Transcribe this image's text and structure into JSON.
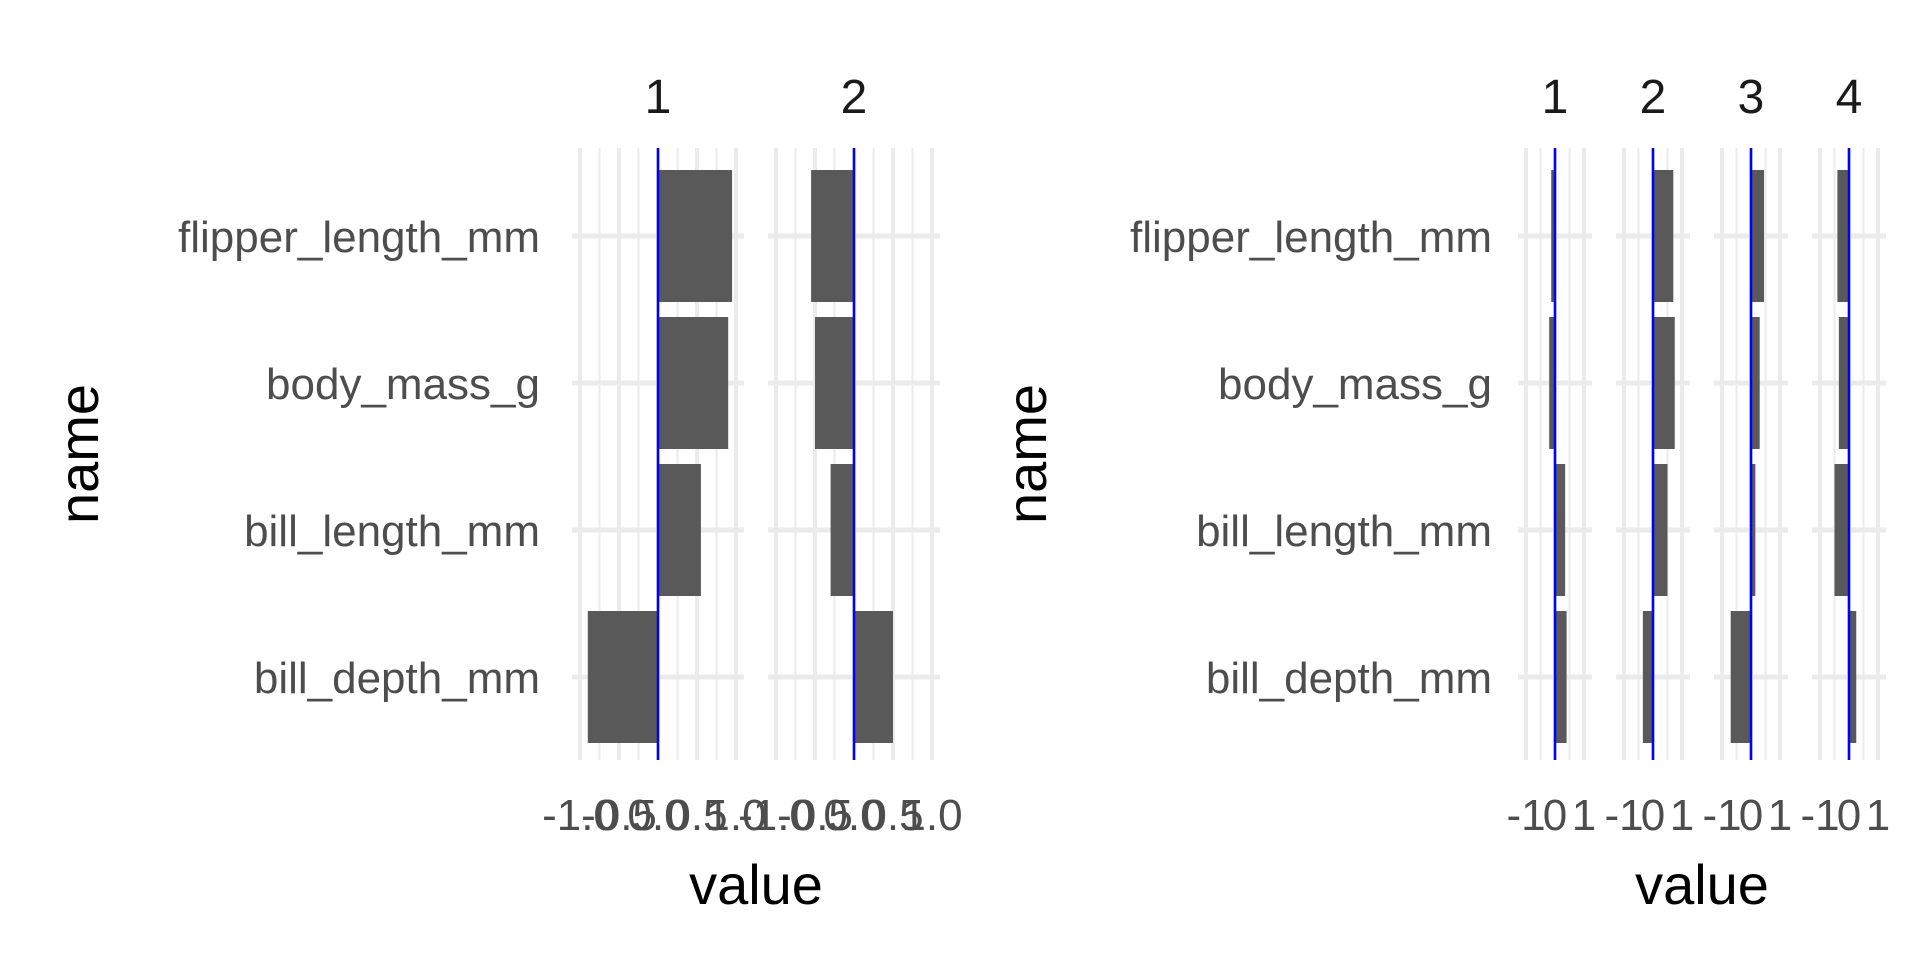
{
  "colors": {
    "bar": "#595959",
    "grid": "#ebebeb",
    "zero_line": "#0000ff",
    "text": "#4d4d4d"
  },
  "chart_data": [
    {
      "type": "bar",
      "orientation": "horizontal",
      "xlabel": "value",
      "ylabel": "name",
      "categories": [
        "flipper_length_mm",
        "body_mass_g",
        "bill_length_mm",
        "bill_depth_mm"
      ],
      "panels": [
        {
          "name": "1",
          "values": [
            0.95,
            0.9,
            0.55,
            -0.9
          ]
        },
        {
          "name": "2",
          "values": [
            -0.55,
            -0.5,
            -0.3,
            0.5
          ]
        }
      ],
      "xlim": [
        -1.0,
        1.0
      ],
      "xticks": [
        -1.0,
        -0.5,
        0.0,
        0.5,
        1.0
      ],
      "xtick_labels": [
        "-1.0",
        "-0.5",
        "0.0",
        "0.5",
        "1.0"
      ],
      "reference_line": 0,
      "grid": true
    },
    {
      "type": "bar",
      "orientation": "horizontal",
      "xlabel": "value",
      "ylabel": "name",
      "categories": [
        "flipper_length_mm",
        "body_mass_g",
        "bill_length_mm",
        "bill_depth_mm"
      ],
      "panels": [
        {
          "name": "1",
          "values": [
            -0.13,
            -0.2,
            0.35,
            0.4
          ]
        },
        {
          "name": "2",
          "values": [
            0.7,
            0.75,
            0.5,
            -0.35
          ]
        },
        {
          "name": "3",
          "values": [
            0.45,
            0.3,
            0.15,
            -0.7
          ]
        },
        {
          "name": "4",
          "values": [
            -0.4,
            -0.35,
            -0.5,
            0.25
          ]
        }
      ],
      "xlim": [
        -1.0,
        1.0
      ],
      "xticks": [
        -1,
        0,
        1
      ],
      "xtick_labels": [
        "-1",
        "0",
        "1"
      ],
      "reference_line": 0,
      "grid": true
    }
  ]
}
